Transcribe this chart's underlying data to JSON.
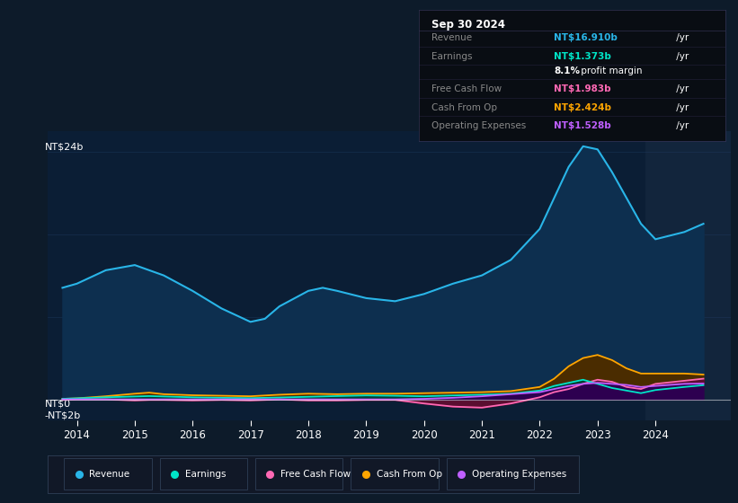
{
  "bg_color": "#0d1b2a",
  "plot_bg_color": "#0b1e35",
  "grid_color": "#1e3a5f",
  "ylim": [
    -2,
    26
  ],
  "xmin": 2013.5,
  "xmax": 2025.3,
  "xticks": [
    2014,
    2015,
    2016,
    2017,
    2018,
    2019,
    2020,
    2021,
    2022,
    2023,
    2024
  ],
  "shaded_x_start": 2023.83,
  "series": {
    "revenue": {
      "color": "#29b5e8",
      "fill_color": "#0d2f4f",
      "label": "Revenue",
      "x": [
        2013.75,
        2014.0,
        2014.5,
        2015.0,
        2015.5,
        2016.0,
        2016.5,
        2017.0,
        2017.25,
        2017.5,
        2018.0,
        2018.25,
        2018.5,
        2019.0,
        2019.5,
        2020.0,
        2020.5,
        2021.0,
        2021.5,
        2022.0,
        2022.25,
        2022.5,
        2022.75,
        2023.0,
        2023.25,
        2023.5,
        2023.75,
        2024.0,
        2024.5,
        2024.83
      ],
      "y": [
        10.8,
        11.2,
        12.5,
        13.0,
        12.0,
        10.5,
        8.8,
        7.5,
        7.8,
        9.0,
        10.5,
        10.8,
        10.5,
        9.8,
        9.5,
        10.2,
        11.2,
        12.0,
        13.5,
        16.5,
        19.5,
        22.5,
        24.5,
        24.2,
        22.0,
        19.5,
        17.0,
        15.5,
        16.2,
        17.0
      ]
    },
    "cash_from_op": {
      "color": "#ffa500",
      "fill_color": "#4a2c00",
      "label": "Cash From Op",
      "x": [
        2013.75,
        2014.0,
        2014.5,
        2015.0,
        2015.25,
        2015.5,
        2016.0,
        2016.5,
        2017.0,
        2017.5,
        2018.0,
        2018.5,
        2019.0,
        2019.5,
        2020.0,
        2020.5,
        2021.0,
        2021.5,
        2022.0,
        2022.25,
        2022.5,
        2022.75,
        2023.0,
        2023.25,
        2023.5,
        2023.75,
        2024.0,
        2024.5,
        2024.83
      ],
      "y": [
        0.05,
        0.1,
        0.3,
        0.55,
        0.65,
        0.5,
        0.4,
        0.35,
        0.3,
        0.45,
        0.55,
        0.5,
        0.55,
        0.55,
        0.6,
        0.65,
        0.7,
        0.8,
        1.2,
        2.0,
        3.2,
        4.0,
        4.3,
        3.8,
        3.0,
        2.5,
        2.5,
        2.5,
        2.4
      ]
    },
    "free_cash_flow": {
      "color": "#ff69b4",
      "fill_color": "#5a0e30",
      "label": "Free Cash Flow",
      "x": [
        2013.75,
        2014.0,
        2014.5,
        2015.0,
        2015.25,
        2015.5,
        2016.0,
        2016.5,
        2017.0,
        2017.5,
        2018.0,
        2018.5,
        2019.0,
        2019.5,
        2020.0,
        2020.5,
        2021.0,
        2021.5,
        2022.0,
        2022.25,
        2022.5,
        2022.75,
        2023.0,
        2023.25,
        2023.5,
        2023.75,
        2024.0,
        2024.5,
        2024.83
      ],
      "y": [
        -0.05,
        0.0,
        0.0,
        -0.1,
        -0.05,
        -0.05,
        -0.1,
        -0.05,
        -0.1,
        0.0,
        -0.1,
        -0.1,
        -0.05,
        -0.05,
        -0.4,
        -0.7,
        -0.8,
        -0.4,
        0.2,
        0.7,
        1.0,
        1.5,
        1.9,
        1.7,
        1.2,
        1.0,
        1.5,
        1.8,
        2.0
      ]
    },
    "earnings": {
      "color": "#00e5c8",
      "fill_color": "#003d33",
      "label": "Earnings",
      "x": [
        2013.75,
        2014.0,
        2014.5,
        2015.0,
        2015.25,
        2015.5,
        2016.0,
        2016.5,
        2017.0,
        2017.5,
        2018.0,
        2018.5,
        2019.0,
        2019.5,
        2020.0,
        2020.5,
        2021.0,
        2021.5,
        2022.0,
        2022.25,
        2022.5,
        2022.75,
        2023.0,
        2023.25,
        2023.5,
        2023.75,
        2024.0,
        2024.5,
        2024.83
      ],
      "y": [
        0.05,
        0.1,
        0.2,
        0.28,
        0.32,
        0.28,
        0.2,
        0.15,
        0.12,
        0.18,
        0.25,
        0.32,
        0.38,
        0.35,
        0.3,
        0.38,
        0.45,
        0.55,
        0.85,
        1.3,
        1.6,
        1.9,
        1.5,
        1.1,
        0.85,
        0.6,
        0.9,
        1.2,
        1.37
      ]
    },
    "operating_expenses": {
      "color": "#bf5fff",
      "fill_color": "#2d0050",
      "label": "Operating Expenses",
      "x": [
        2013.75,
        2014.0,
        2014.5,
        2015.0,
        2015.5,
        2016.0,
        2016.5,
        2017.0,
        2017.5,
        2018.0,
        2018.5,
        2019.0,
        2019.5,
        2020.0,
        2020.5,
        2021.0,
        2021.5,
        2022.0,
        2022.25,
        2022.5,
        2022.75,
        2023.0,
        2023.25,
        2023.5,
        2023.75,
        2024.0,
        2024.5,
        2024.83
      ],
      "y": [
        0.0,
        0.0,
        0.0,
        0.0,
        0.0,
        0.0,
        0.0,
        0.0,
        0.0,
        0.0,
        0.0,
        0.0,
        0.0,
        0.05,
        0.15,
        0.3,
        0.5,
        0.7,
        1.0,
        1.3,
        1.5,
        1.6,
        1.5,
        1.4,
        1.2,
        1.3,
        1.5,
        1.53
      ]
    }
  },
  "info_box": {
    "date": "Sep 30 2024",
    "rows": [
      {
        "label": "Revenue",
        "value": "NT$16.910b",
        "suffix": " /yr",
        "color": "#29b5e8"
      },
      {
        "label": "Earnings",
        "value": "NT$1.373b",
        "suffix": " /yr",
        "color": "#00e5c8"
      },
      {
        "label": "",
        "value": "8.1%",
        "suffix": " profit margin",
        "color": "white"
      },
      {
        "label": "Free Cash Flow",
        "value": "NT$1.983b",
        "suffix": " /yr",
        "color": "#ff69b4"
      },
      {
        "label": "Cash From Op",
        "value": "NT$2.424b",
        "suffix": " /yr",
        "color": "#ffa500"
      },
      {
        "label": "Operating Expenses",
        "value": "NT$1.528b",
        "suffix": " /yr",
        "color": "#bf5fff"
      }
    ]
  },
  "legend_items": [
    {
      "label": "Revenue",
      "color": "#29b5e8"
    },
    {
      "label": "Earnings",
      "color": "#00e5c8"
    },
    {
      "label": "Free Cash Flow",
      "color": "#ff69b4"
    },
    {
      "label": "Cash From Op",
      "color": "#ffa500"
    },
    {
      "label": "Operating Expenses",
      "color": "#bf5fff"
    }
  ]
}
